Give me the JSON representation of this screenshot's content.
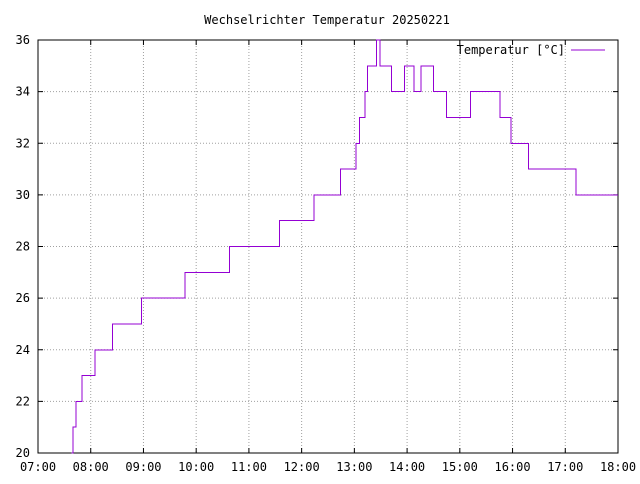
{
  "chart_data": {
    "type": "line",
    "title": "Wechselrichter Temperatur 20250221",
    "xlabel": "",
    "ylabel": "",
    "x_ticks": [
      "07:00",
      "08:00",
      "09:00",
      "10:00",
      "11:00",
      "12:00",
      "13:00",
      "14:00",
      "15:00",
      "16:00",
      "17:00",
      "18:00"
    ],
    "y_ticks": [
      "20",
      "22",
      "24",
      "26",
      "28",
      "30",
      "32",
      "34",
      "36"
    ],
    "xlim": [
      "07:00",
      "18:00"
    ],
    "ylim": [
      20,
      36
    ],
    "grid": true,
    "legend_position": "top-right",
    "step": "post",
    "series": [
      {
        "name": "Temperatur [°C]",
        "color": "#9400d3",
        "points": [
          [
            "07:38",
            20
          ],
          [
            "07:40",
            21
          ],
          [
            "07:43",
            22
          ],
          [
            "07:50",
            23
          ],
          [
            "08:05",
            24
          ],
          [
            "08:25",
            25
          ],
          [
            "08:58",
            26
          ],
          [
            "09:47",
            27
          ],
          [
            "10:38",
            28
          ],
          [
            "11:35",
            29
          ],
          [
            "12:14",
            30
          ],
          [
            "12:44",
            31
          ],
          [
            "13:02",
            32
          ],
          [
            "13:06",
            33
          ],
          [
            "13:12",
            34
          ],
          [
            "13:15",
            35
          ],
          [
            "13:25",
            36
          ],
          [
            "13:29",
            35
          ],
          [
            "13:42",
            34
          ],
          [
            "13:57",
            35
          ],
          [
            "14:08",
            34
          ],
          [
            "14:16",
            35
          ],
          [
            "14:30",
            34
          ],
          [
            "14:45",
            33
          ],
          [
            "15:12",
            34
          ],
          [
            "15:46",
            33
          ],
          [
            "15:58",
            32
          ],
          [
            "16:18",
            31
          ],
          [
            "17:12",
            30
          ],
          [
            "18:00",
            30
          ]
        ]
      }
    ]
  }
}
